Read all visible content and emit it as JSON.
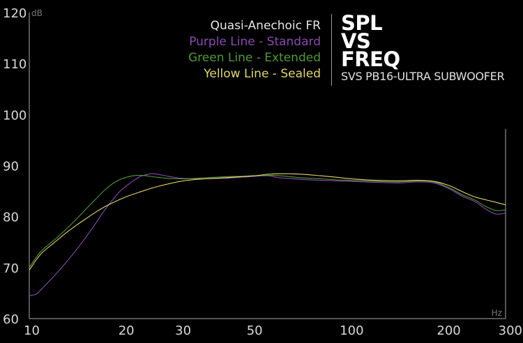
{
  "legend": {
    "heading": "Quasi-Anechoic FR",
    "items": [
      {
        "label": "Purple Line - Standard",
        "color": "#8a4bb0"
      },
      {
        "label": "Green Line - Extended",
        "color": "#4f9a38"
      },
      {
        "label": "Yellow Line - Sealed",
        "color": "#e4d66a"
      }
    ]
  },
  "title": {
    "line1": "SPL",
    "line2": "VS",
    "line3": "FREQ",
    "subtitle": "SVS PB16-ULTRA SUBWOOFER"
  },
  "chart_data": {
    "type": "line",
    "x_scale": "log",
    "xlim": [
      10,
      300
    ],
    "ylim": [
      60,
      120
    ],
    "xlabel": "Hz",
    "ylabel": "dB",
    "x_ticks": [
      10,
      20,
      30,
      50,
      100,
      200,
      300
    ],
    "y_ticks": [
      60,
      70,
      80,
      90,
      100,
      110,
      120
    ],
    "grid": false,
    "series": [
      {
        "name": "Purple Line - Standard",
        "color": "#8a4bb0",
        "x": [
          10,
          10.5,
          11,
          12,
          13,
          14,
          15,
          16,
          17,
          18,
          19,
          20,
          21,
          22,
          23,
          24,
          25,
          27,
          30,
          35,
          40,
          45,
          50,
          55,
          60,
          70,
          80,
          90,
          100,
          120,
          140,
          160,
          180,
          200,
          220,
          240,
          260,
          280,
          300
        ],
        "y": [
          64.5,
          64.8,
          66,
          68.5,
          71,
          73.5,
          76,
          78.5,
          81,
          83,
          84.8,
          86,
          87,
          87.8,
          88.2,
          88.4,
          88.3,
          87.9,
          87.5,
          87.4,
          87.5,
          87.7,
          87.9,
          88,
          87.6,
          87.3,
          87.1,
          87,
          86.9,
          86.7,
          86.6,
          86.8,
          86.6,
          85.5,
          84,
          83,
          81.5,
          80.5,
          80.7
        ]
      },
      {
        "name": "Green Line - Extended",
        "color": "#4f9a38",
        "x": [
          10,
          10.5,
          11,
          12,
          13,
          14,
          15,
          16,
          17,
          18,
          19,
          20,
          21,
          22,
          23,
          25,
          27,
          30,
          35,
          40,
          45,
          50,
          55,
          60,
          70,
          80,
          90,
          100,
          120,
          140,
          160,
          180,
          200,
          220,
          240,
          260,
          280,
          300
        ],
        "y": [
          70,
          72,
          73.5,
          75.5,
          77.5,
          79.5,
          81.5,
          83.3,
          85,
          86.3,
          87.2,
          87.7,
          88,
          88.1,
          88,
          87.7,
          87.5,
          87.4,
          87.6,
          87.8,
          87.9,
          88,
          88.1,
          88,
          87.6,
          87.4,
          87.2,
          87.1,
          86.9,
          86.8,
          87,
          86.8,
          85.7,
          84.3,
          83.3,
          82,
          81.2,
          81.3
        ]
      },
      {
        "name": "Yellow Line - Sealed",
        "color": "#e4d66a",
        "x": [
          10,
          10.5,
          11,
          12,
          13,
          14,
          15,
          16,
          17,
          18,
          19,
          20,
          22,
          25,
          30,
          35,
          40,
          45,
          50,
          55,
          60,
          70,
          80,
          90,
          100,
          120,
          140,
          160,
          180,
          200,
          220,
          240,
          260,
          280,
          300
        ],
        "y": [
          69.5,
          71.5,
          73,
          75,
          76.8,
          78.3,
          79.6,
          80.8,
          81.8,
          82.6,
          83.3,
          83.9,
          84.8,
          85.9,
          87,
          87.4,
          87.6,
          87.8,
          88,
          88.3,
          88.4,
          88.3,
          88,
          87.7,
          87.4,
          87.1,
          87,
          87.1,
          86.9,
          86.1,
          84.9,
          83.9,
          83.3,
          82.8,
          82.3
        ]
      }
    ]
  }
}
